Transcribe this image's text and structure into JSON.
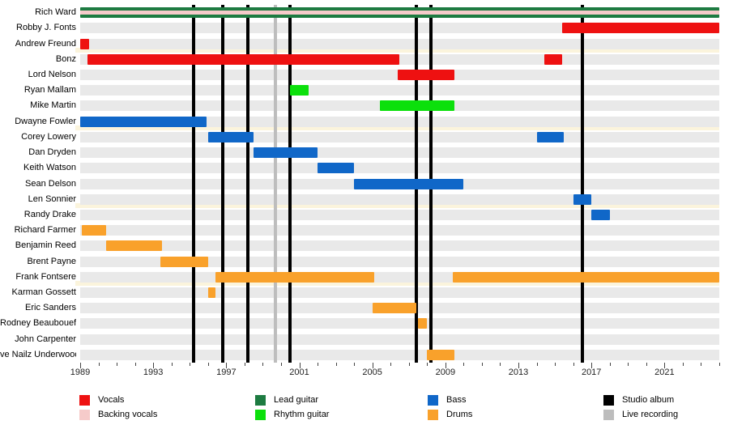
{
  "chart_data": {
    "type": "timeline",
    "title": "",
    "x_axis": {
      "min": 1989,
      "max": 2024,
      "major_tick_years": [
        1989,
        1993,
        1997,
        2001,
        2005,
        2009,
        2013,
        2017,
        2021
      ],
      "minor_tick_interval": 1
    },
    "roles": {
      "vocals": {
        "label": "Vocals",
        "color": "#ee1111"
      },
      "backing_vocals": {
        "label": "Backing vocals",
        "color": "#f6cbca"
      },
      "lead_guitar": {
        "label": "Lead guitar",
        "color": "#1d7b41"
      },
      "rhythm_guitar": {
        "label": "Rhythm guitar",
        "color": "#0ce00c"
      },
      "bass": {
        "label": "Bass",
        "color": "#1067c8"
      },
      "drums": {
        "label": "Drums",
        "color": "#f9a12b"
      },
      "studio_album": {
        "label": "Studio album",
        "color": "#000000"
      },
      "live_recording": {
        "label": "Live recording",
        "color": "#bdbdbd"
      }
    },
    "members": [
      {
        "name": "Rich Ward",
        "bars": [
          {
            "role": "lead_guitar",
            "start": 1989.0,
            "end": 2024.0
          },
          {
            "role": "backing_vocals",
            "start": 1989.0,
            "end": 2024.0,
            "overlay": true
          }
        ]
      },
      {
        "name": "Robby J. Fonts",
        "bars": [
          {
            "role": "vocals",
            "start": 2015.4,
            "end": 2024.0
          }
        ]
      },
      {
        "name": "Andrew Freund",
        "bars": [
          {
            "role": "vocals",
            "start": 1989.0,
            "end": 1989.5
          }
        ]
      },
      {
        "name": "Bonz",
        "bars": [
          {
            "role": "vocals",
            "start": 1989.4,
            "end": 2006.5
          },
          {
            "role": "vocals",
            "start": 2014.4,
            "end": 2015.4
          }
        ]
      },
      {
        "name": "Lord Nelson",
        "bars": [
          {
            "role": "vocals",
            "start": 2006.4,
            "end": 2009.5
          }
        ]
      },
      {
        "name": "Ryan Mallam",
        "bars": [
          {
            "role": "rhythm_guitar",
            "start": 2000.5,
            "end": 2001.5
          }
        ]
      },
      {
        "name": "Mike Martin",
        "bars": [
          {
            "role": "rhythm_guitar",
            "start": 2005.4,
            "end": 2009.5
          }
        ]
      },
      {
        "name": "Dwayne Fowler",
        "bars": [
          {
            "role": "bass",
            "start": 1989.0,
            "end": 1995.9
          }
        ]
      },
      {
        "name": "Corey Lowery",
        "bars": [
          {
            "role": "bass",
            "start": 1996.0,
            "end": 1998.5
          },
          {
            "role": "bass",
            "start": 2014.0,
            "end": 2015.5
          }
        ]
      },
      {
        "name": "Dan Dryden",
        "bars": [
          {
            "role": "bass",
            "start": 1998.5,
            "end": 2002.0
          }
        ]
      },
      {
        "name": "Keith Watson",
        "bars": [
          {
            "role": "bass",
            "start": 2002.0,
            "end": 2004.0
          }
        ]
      },
      {
        "name": "Sean Delson",
        "bars": [
          {
            "role": "bass",
            "start": 2004.0,
            "end": 2010.0
          }
        ]
      },
      {
        "name": "Len Sonnier",
        "bars": [
          {
            "role": "bass",
            "start": 2016.0,
            "end": 2017.0
          }
        ]
      },
      {
        "name": "Randy Drake",
        "bars": [
          {
            "role": "bass",
            "start": 2017.0,
            "end": 2018.0
          }
        ]
      },
      {
        "name": "Richard Farmer",
        "bars": [
          {
            "role": "drums",
            "start": 1989.1,
            "end": 1990.4
          }
        ]
      },
      {
        "name": "Benjamin Reed",
        "bars": [
          {
            "role": "drums",
            "start": 1990.4,
            "end": 1993.5
          }
        ]
      },
      {
        "name": "Brent Payne",
        "bars": [
          {
            "role": "drums",
            "start": 1993.4,
            "end": 1996.0
          }
        ]
      },
      {
        "name": "Frank Fontsere",
        "bars": [
          {
            "role": "drums",
            "start": 1996.4,
            "end": 2005.1
          },
          {
            "role": "drums",
            "start": 2009.4,
            "end": 2024.0
          }
        ]
      },
      {
        "name": "Karman Gossett",
        "bars": [
          {
            "role": "drums",
            "start": 1996.0,
            "end": 1996.4
          }
        ]
      },
      {
        "name": "Eric Sanders",
        "bars": [
          {
            "role": "drums",
            "start": 2005.0,
            "end": 2007.4
          }
        ]
      },
      {
        "name": "Rodney Beaubouef",
        "bars": [
          {
            "role": "drums",
            "start": 2007.5,
            "end": 2008.0
          }
        ]
      },
      {
        "name": "John Carpenter",
        "bars": []
      },
      {
        "name": "ve Nailz Underwood",
        "bars": [
          {
            "role": "drums",
            "start": 2008.0,
            "end": 2009.5
          }
        ]
      }
    ],
    "events": {
      "studio_albums": [
        1995.2,
        1996.8,
        1998.2,
        2000.5,
        2007.4,
        2008.2,
        2016.5
      ],
      "live_recordings": [
        1999.7
      ]
    },
    "legend": {
      "position": "bottom",
      "columns": [
        [
          "vocals",
          "backing_vocals"
        ],
        [
          "lead_guitar",
          "rhythm_guitar"
        ],
        [
          "bass",
          "drums"
        ],
        [
          "studio_album",
          "live_recording"
        ]
      ]
    }
  }
}
